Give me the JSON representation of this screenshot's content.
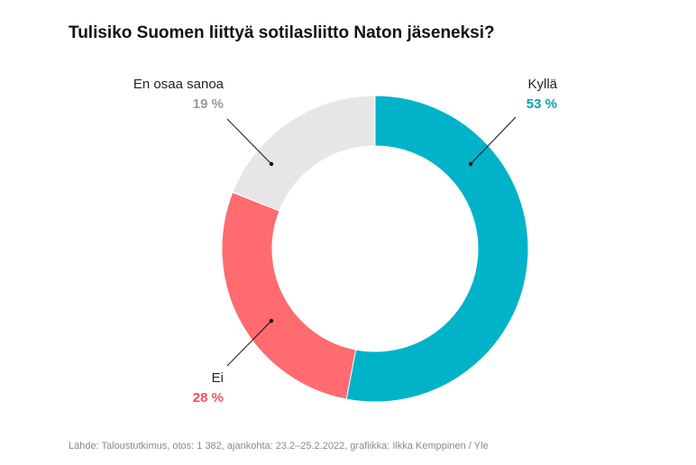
{
  "chart_data": {
    "type": "pie",
    "title": "Tulisiko Suomen liittyä sotilasliitto Naton jäseneksi?",
    "slices": [
      {
        "label": "Kyllä",
        "value": 53,
        "value_label": "53 %",
        "color": "#00b3c9"
      },
      {
        "label": "Ei",
        "value": 28,
        "value_label": "28 %",
        "color": "#ff6b6e"
      },
      {
        "label": "En osaa sanoa",
        "value": 19,
        "value_label": "19 %",
        "color": "#e6e6e6"
      }
    ],
    "value_label_colors": [
      "#0a9fb5",
      "#f0505a",
      "#9a9a9a"
    ],
    "style": "donut",
    "legend": "none"
  },
  "source": "Lähde: Taloustutkimus, otos: 1 382, ajankohta: 23.2–25.2.2022, grafiikka: Ilkka Kemppinen / Yle"
}
